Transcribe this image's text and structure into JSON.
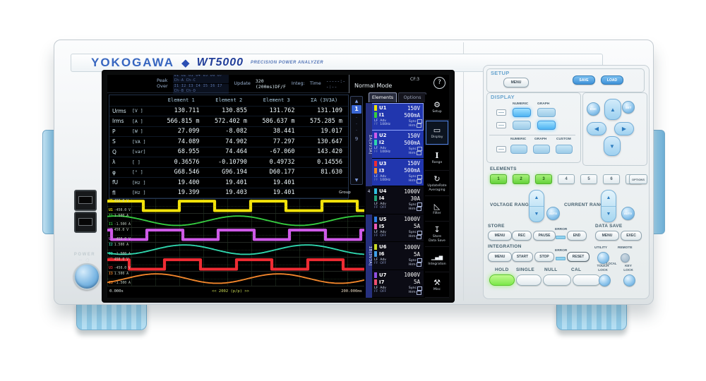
{
  "brand": {
    "maker": "YOKOGAWA",
    "diamond": "◆",
    "model": "WT5000",
    "tagline": "PRECISION POWER ANALYZER"
  },
  "screen": {
    "status": {
      "peak": "Peak",
      "over": "Over",
      "peak_row": "U1 U2 U3 U4 U5 U6 U7 Ch-A Ch-C",
      "over_row": "I1 I2 I3 I4 I5 I6 I7 Ch-B Ch-D",
      "update_label": "Update",
      "update_value": "320 (200ms)DF/F",
      "integ_label": "Integ:",
      "time_label": "Time",
      "time_value": "-----:--:--"
    },
    "header": {
      "mode": "Normal Mode",
      "cf": "CF:3",
      "help": "?"
    },
    "tabs": [
      {
        "label": "Elements",
        "active": true
      },
      {
        "label": "Options",
        "active": false
      }
    ],
    "table": {
      "headers": [
        "Element 1",
        "Element 2",
        "Element 3",
        "ΣA (3V3A)"
      ],
      "rows": [
        {
          "name": "Urms",
          "unit": "[V  ]",
          "values": [
            "130.711",
            "130.855",
            "131.762",
            "131.109"
          ]
        },
        {
          "name": "Irms",
          "unit": "[A  ]",
          "values": [
            "566.815 m",
            "572.402 m",
            "586.637 m",
            "575.285 m"
          ]
        },
        {
          "name": "P",
          "unit": "[W  ]",
          "values": [
            "27.099",
            "-8.082",
            "38.441",
            "19.017"
          ]
        },
        {
          "name": "S",
          "unit": "[VA ]",
          "values": [
            "74.089",
            "74.902",
            "77.297",
            "130.647"
          ]
        },
        {
          "name": "Q",
          "unit": "[var]",
          "values": [
            "68.955",
            "74.464",
            "-67.060",
            "143.420"
          ]
        },
        {
          "name": "λ",
          "unit": "[   ]",
          "values": [
            "0.36576",
            "-0.10790",
            "0.49732",
            "0.14556"
          ]
        },
        {
          "name": "φ",
          "unit": "[°  ]",
          "values": [
            "G68.546",
            "G96.194",
            "D60.177",
            "81.630"
          ]
        },
        {
          "name": "fU",
          "unit": "[Hz ]",
          "values": [
            "19.400",
            "19.401",
            "19.401",
            ""
          ]
        },
        {
          "name": "fI",
          "unit": "[Hz ]",
          "values": [
            "19.399",
            "19.403",
            "19.401",
            ""
          ]
        }
      ]
    },
    "pager": {
      "up": "▲",
      "current": "1",
      "dots": [
        "·",
        "·",
        "·"
      ],
      "last": "9",
      "down": "▼"
    },
    "element_groups": {
      "gutter_a": "ΣA(3V3A)",
      "gutter_4": "4",
      "gutter_b": "ΣB(3V3A)",
      "items": [
        {
          "group": 1,
          "u": "U1",
          "u_range": "150V",
          "u_color": "#f2e20a",
          "i": "I1",
          "i_range": "500mA",
          "i_color": "#35cc3f",
          "lf": "LF",
          "ff": "FF",
          "adv": "Adv",
          "freq": "100Hz",
          "sync": "Sync",
          "hrm": "Hrm",
          "selected": true
        },
        {
          "group": 2,
          "u": "U2",
          "u_range": "150V",
          "u_color": "#cf5ae8",
          "i": "I2",
          "i_range": "500mA",
          "i_color": "#2fd6ad",
          "lf": "LF",
          "ff": "FF",
          "adv": "Adv",
          "freq": "100Hz",
          "sync": "Sync",
          "hrm": "Hrm",
          "selected": false
        },
        {
          "group": 3,
          "u": "U3",
          "u_range": "150V",
          "u_color": "#ef2b33",
          "i": "I3",
          "i_range": "500mA",
          "i_color": "#f2862b",
          "lf": "LF",
          "ff": "FF",
          "adv": "Adv",
          "freq": "100Hz",
          "sync": "Sync",
          "hrm": "Hrm",
          "selected": false
        },
        {
          "group": 4,
          "u": "U4",
          "u_range": "1000V",
          "u_color": "#2fbfdf",
          "i": "I4",
          "i_range": "30A",
          "i_color": "#1fa37a",
          "lf": "LF",
          "ff": "FF",
          "adv": "Adv",
          "freq": "OFF",
          "sync": "Sync",
          "hrm": "Hrm",
          "selected": false
        },
        {
          "group": 5,
          "u": "U5",
          "u_range": "1000V",
          "u_color": "#2f7fe8",
          "i": "I5",
          "i_range": "5A",
          "i_color": "#ef5ab8",
          "lf": "LF",
          "ff": "FF",
          "adv": "Adv",
          "freq": "OFF",
          "sync": "Sync",
          "hrm": "Hrm",
          "selected": false
        },
        {
          "group": 6,
          "u": "U6",
          "u_range": "1000V",
          "u_color": "#cada25",
          "i": "I6",
          "i_range": "5A",
          "i_color": "#3f9fe8",
          "lf": "LF",
          "ff": "FF",
          "adv": "Adv",
          "freq": "OFF",
          "sync": "Sync",
          "hrm": "Hrm",
          "selected": false
        },
        {
          "group": 7,
          "u": "U7",
          "u_range": "1000V",
          "u_color": "#8f4fdf",
          "i": "I7",
          "i_range": "5A",
          "i_color": "#ef4f6f",
          "lf": "LF",
          "ff": "FF",
          "adv": "Adv",
          "freq": "OFF",
          "sync": "Sync",
          "hrm": "Hrm",
          "selected": false
        }
      ]
    },
    "sidebar": [
      {
        "name": "setup",
        "glyph": "⚙",
        "lines": [
          "Setup"
        ],
        "active": false
      },
      {
        "name": "display",
        "glyph": "▭",
        "lines": [
          "Display"
        ],
        "active": true
      },
      {
        "name": "range",
        "glyph": "I",
        "lines": [
          "Range"
        ],
        "active": false
      },
      {
        "name": "update-rate",
        "glyph": "↻",
        "lines": [
          "UpdateRate",
          "Averaging"
        ],
        "active": false
      },
      {
        "name": "filter",
        "glyph": "◺",
        "lines": [
          "Filter"
        ],
        "active": false
      },
      {
        "name": "store-data-save",
        "glyph": "↧",
        "lines": [
          "Store",
          "Data Save"
        ],
        "active": false
      },
      {
        "name": "integration",
        "glyph": "▁▄▆",
        "lines": [
          "Integration"
        ],
        "active": false
      },
      {
        "name": "misc",
        "glyph": "⚒",
        "lines": [
          "Misc"
        ],
        "active": false
      }
    ],
    "waveforms": [
      {
        "ch": "U1",
        "type": "square",
        "color": "#f2e20a",
        "max": "450.0 V",
        "min": "-450.0 V",
        "cycles": 3.6,
        "phase": 0.0
      },
      {
        "ch": "I1",
        "type": "sine",
        "color": "#35cc3f",
        "max": "1.500 A",
        "min": "-1.500 A",
        "cycles": 2.1,
        "phase": 0.18
      },
      {
        "ch": "U2",
        "type": "square",
        "color": "#cf5ae8",
        "max": "450.0 V",
        "min": "-450.0 V",
        "cycles": 3.6,
        "phase": 0.45
      },
      {
        "ch": "I2",
        "type": "sine",
        "color": "#2fd6ad",
        "max": "1.500 A",
        "min": "-1.500 A",
        "cycles": 2.1,
        "phase": 0.62
      },
      {
        "ch": "U3",
        "type": "square",
        "color": "#ef2b33",
        "max": "450.0 V",
        "min": "-450.0 V",
        "cycles": 3.6,
        "phase": 0.2
      },
      {
        "ch": "I3",
        "type": "sine",
        "color": "#f2862b",
        "max": "1.500 A",
        "min": "-1.500 A",
        "cycles": 2.1,
        "phase": 0.85
      }
    ],
    "wave_footer": {
      "start": "0.000s",
      "pp": "<< 2002 (p/p) >>",
      "end": "200.000ms",
      "group": "Group"
    }
  },
  "panel": {
    "setup": {
      "label": "SETUP",
      "menu": "MENU",
      "save": "SAVE",
      "load": "LOAD"
    },
    "display": {
      "label": "DISPLAY",
      "row1_labels": [
        "NUMERIC",
        "GRAPH"
      ],
      "row3_labels": [
        "NUMERIC",
        "GRAPH",
        "CUSTOM"
      ]
    },
    "cursor": {
      "esc": "ESC",
      "set": "SET",
      "up": "▲",
      "down": "▼",
      "left": "◀",
      "right": "▶"
    },
    "elements": {
      "label": "ELEMENTS",
      "keys": [
        "1",
        "2",
        "3",
        "4",
        "5",
        "6",
        "7"
      ],
      "options": "OPTIONS",
      "lit": [
        "1",
        "2",
        "3"
      ]
    },
    "voltage_range": {
      "label": "VOLTAGE RANGE",
      "auto": "AUTO",
      "up": "▲",
      "down": "▼"
    },
    "current_range": {
      "label": "CURRENT RANGE",
      "auto": "AUTO",
      "up": "▲",
      "down": "▼"
    },
    "store": {
      "label": "STORE",
      "menu": "MENU",
      "rec": "REC",
      "pause": "PAUSE",
      "error": "ERROR",
      "end": "END"
    },
    "data_save": {
      "label": "DATA SAVE",
      "menu": "MENU",
      "exec": "EXEC"
    },
    "integration": {
      "label": "INTEGRATION",
      "menu": "MENU",
      "start": "START",
      "stop": "STOP",
      "error": "ERROR",
      "reset": "RESET"
    },
    "utility": {
      "utility": "UTILITY",
      "remote": "REMOTE",
      "local": "LOCAL"
    },
    "hold_row": {
      "hold": "HOLD",
      "single": "SINGLE",
      "null": "NULL",
      "cal": "CAL"
    },
    "locks": {
      "touch1": "TOUCH",
      "touch2": "LOCK",
      "key1": "KEY",
      "key2": "LOCK"
    }
  },
  "left_panel": {
    "power": "POWER"
  }
}
